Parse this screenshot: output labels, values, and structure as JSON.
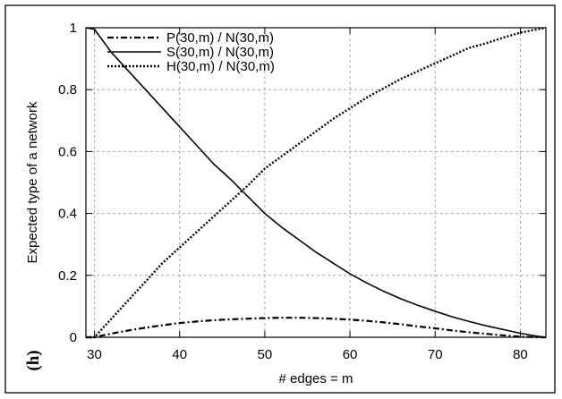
{
  "chart_data": {
    "type": "line",
    "panel_label": "(h)",
    "xlabel": "# edges = m",
    "ylabel": "Expected type of a network",
    "xlim": [
      29,
      83
    ],
    "ylim": [
      0,
      1
    ],
    "xticks": [
      30,
      40,
      50,
      60,
      70,
      80
    ],
    "yticks": [
      0,
      0.2,
      0.4,
      0.6,
      0.8,
      1
    ],
    "ytick_labels": [
      "0",
      "0.2",
      "0.4",
      "0.6",
      "0.8",
      "1"
    ],
    "grid": true,
    "legend_position": "top-left",
    "x": [
      29,
      30,
      32,
      34,
      36,
      38,
      40,
      42,
      44,
      46,
      48,
      50,
      52,
      54,
      56,
      58,
      60,
      62,
      64,
      66,
      68,
      70,
      72,
      74,
      76,
      78,
      80,
      82,
      83
    ],
    "series": [
      {
        "name": "P(30,m) / N(30,m)",
        "style": "dashdot",
        "values": [
          0.0,
          0.0,
          0.012,
          0.022,
          0.031,
          0.039,
          0.046,
          0.051,
          0.055,
          0.058,
          0.06,
          0.062,
          0.063,
          0.063,
          0.062,
          0.06,
          0.057,
          0.053,
          0.048,
          0.042,
          0.035,
          0.029,
          0.022,
          0.016,
          0.011,
          0.006,
          0.002,
          0.0,
          0.0
        ]
      },
      {
        "name": "S(30,m) / N(30,m)",
        "style": "solid",
        "values": [
          1.0,
          0.995,
          0.92,
          0.86,
          0.8,
          0.74,
          0.68,
          0.62,
          0.56,
          0.51,
          0.455,
          0.4,
          0.355,
          0.315,
          0.275,
          0.24,
          0.205,
          0.175,
          0.148,
          0.124,
          0.103,
          0.084,
          0.066,
          0.051,
          0.037,
          0.025,
          0.013,
          0.003,
          0.0
        ]
      },
      {
        "name": "H(30,m) / N(30,m)",
        "style": "dotted",
        "values": [
          0.0,
          0.0,
          0.06,
          0.12,
          0.18,
          0.24,
          0.29,
          0.34,
          0.39,
          0.44,
          0.49,
          0.545,
          0.585,
          0.625,
          0.665,
          0.705,
          0.74,
          0.775,
          0.805,
          0.835,
          0.86,
          0.885,
          0.91,
          0.935,
          0.95,
          0.968,
          0.984,
          0.995,
          1.0
        ]
      }
    ]
  }
}
